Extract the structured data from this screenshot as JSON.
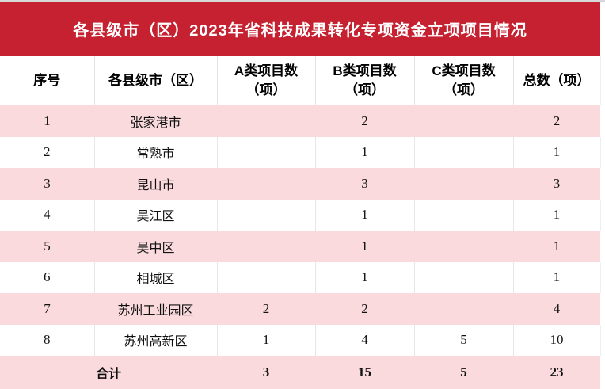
{
  "title": "各县级市（区）2023年省科技成果转化专项资金立项项目情况",
  "colors": {
    "banner_red": "#c52130",
    "row_pink": "#fadadd",
    "divider_gray": "#e3e3e3",
    "title_text": "#ffffff",
    "body_text": "#111111"
  },
  "table": {
    "headers": [
      "序号",
      "各县级市（区）",
      "A类项目数\n（项）",
      "B类项目数\n（项）",
      "C类项目数\n（项）",
      "总数（项）"
    ],
    "rows": [
      {
        "no": "1",
        "city": "张家港市",
        "a": "",
        "b": "2",
        "c": "",
        "total": "2"
      },
      {
        "no": "2",
        "city": "常熟市",
        "a": "",
        "b": "1",
        "c": "",
        "total": "1"
      },
      {
        "no": "3",
        "city": "昆山市",
        "a": "",
        "b": "3",
        "c": "",
        "total": "3"
      },
      {
        "no": "4",
        "city": "吴江区",
        "a": "",
        "b": "1",
        "c": "",
        "total": "1"
      },
      {
        "no": "5",
        "city": "吴中区",
        "a": "",
        "b": "1",
        "c": "",
        "total": "1"
      },
      {
        "no": "6",
        "city": "相城区",
        "a": "",
        "b": "1",
        "c": "",
        "total": "1"
      },
      {
        "no": "7",
        "city": "苏州工业园区",
        "a": "2",
        "b": "2",
        "c": "",
        "total": "4"
      },
      {
        "no": "8",
        "city": "苏州高新区",
        "a": "1",
        "b": "4",
        "c": "5",
        "total": "10"
      }
    ],
    "total": {
      "label": "合计",
      "a": "3",
      "b": "15",
      "c": "5",
      "total": "23"
    }
  }
}
